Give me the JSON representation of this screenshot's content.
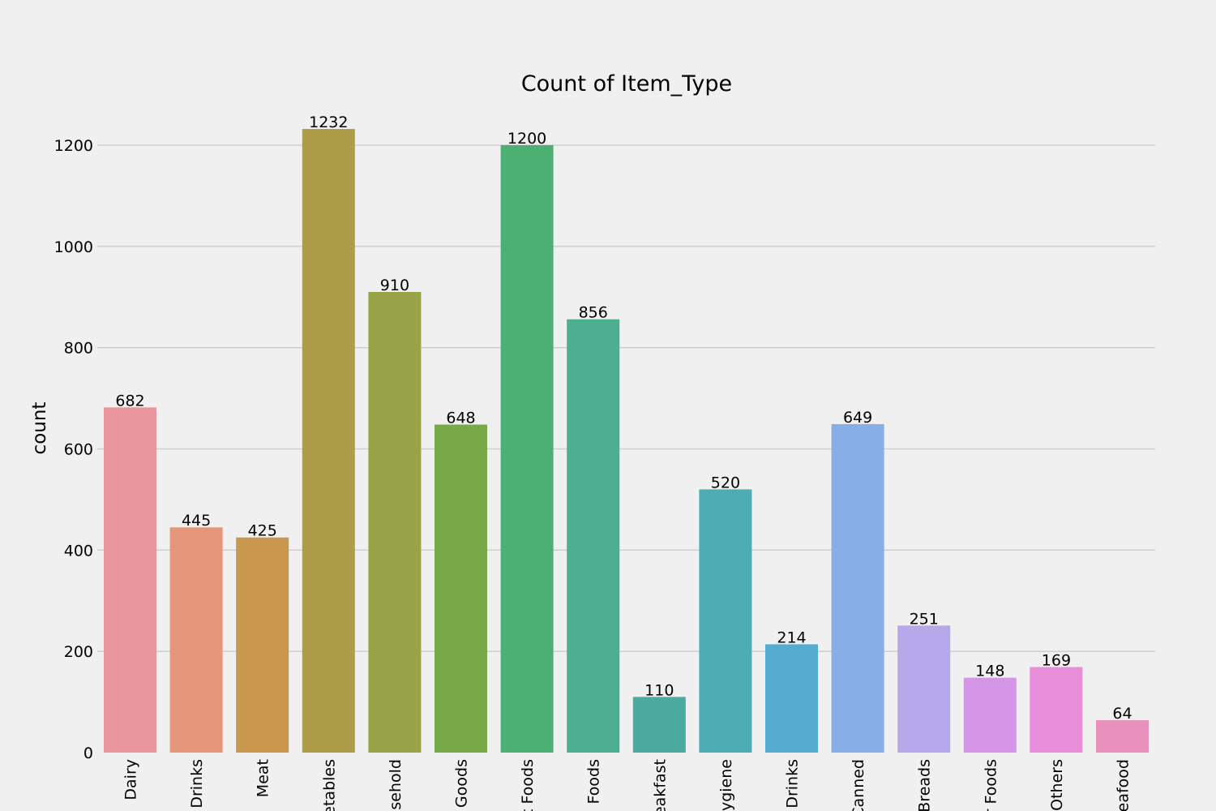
{
  "chart_data": {
    "type": "bar",
    "title": "Count of Item_Type",
    "xlabel": "",
    "ylabel": "count",
    "categories": [
      "Dairy",
      "Drinks",
      "Meat",
      "etables",
      "sehold",
      "Goods",
      "t Foods",
      "Foods",
      "eakfast",
      "ygiene",
      "Drinks",
      "Canned",
      "Breads",
      "r Foods",
      "Others",
      "eafood"
    ],
    "values": [
      682,
      445,
      425,
      1232,
      910,
      648,
      1200,
      856,
      110,
      520,
      214,
      649,
      251,
      148,
      169,
      64
    ],
    "value_labels": [
      "682",
      "445",
      "425",
      "1232",
      "910",
      "648",
      "1200",
      "856",
      "110",
      "520",
      "214",
      "649",
      "251",
      "148",
      "169",
      "64"
    ],
    "yticks": [
      0,
      200,
      400,
      600,
      800,
      1000,
      1200
    ],
    "ytick_labels": [
      "0",
      "200",
      "400",
      "600",
      "800",
      "1000",
      "1200"
    ],
    "ylim": [
      0,
      1294
    ],
    "grid": true,
    "colors": [
      "#e9969f",
      "#e5967a",
      "#c9974d",
      "#ae9d48",
      "#98a348",
      "#77a948",
      "#4caf73",
      "#4baf90",
      "#4caba0",
      "#4eacb4",
      "#55abd0",
      "#88aee6",
      "#b6a8eb",
      "#d596e8",
      "#e88dd8",
      "#e891bc"
    ],
    "background": "#f0f0f0"
  }
}
